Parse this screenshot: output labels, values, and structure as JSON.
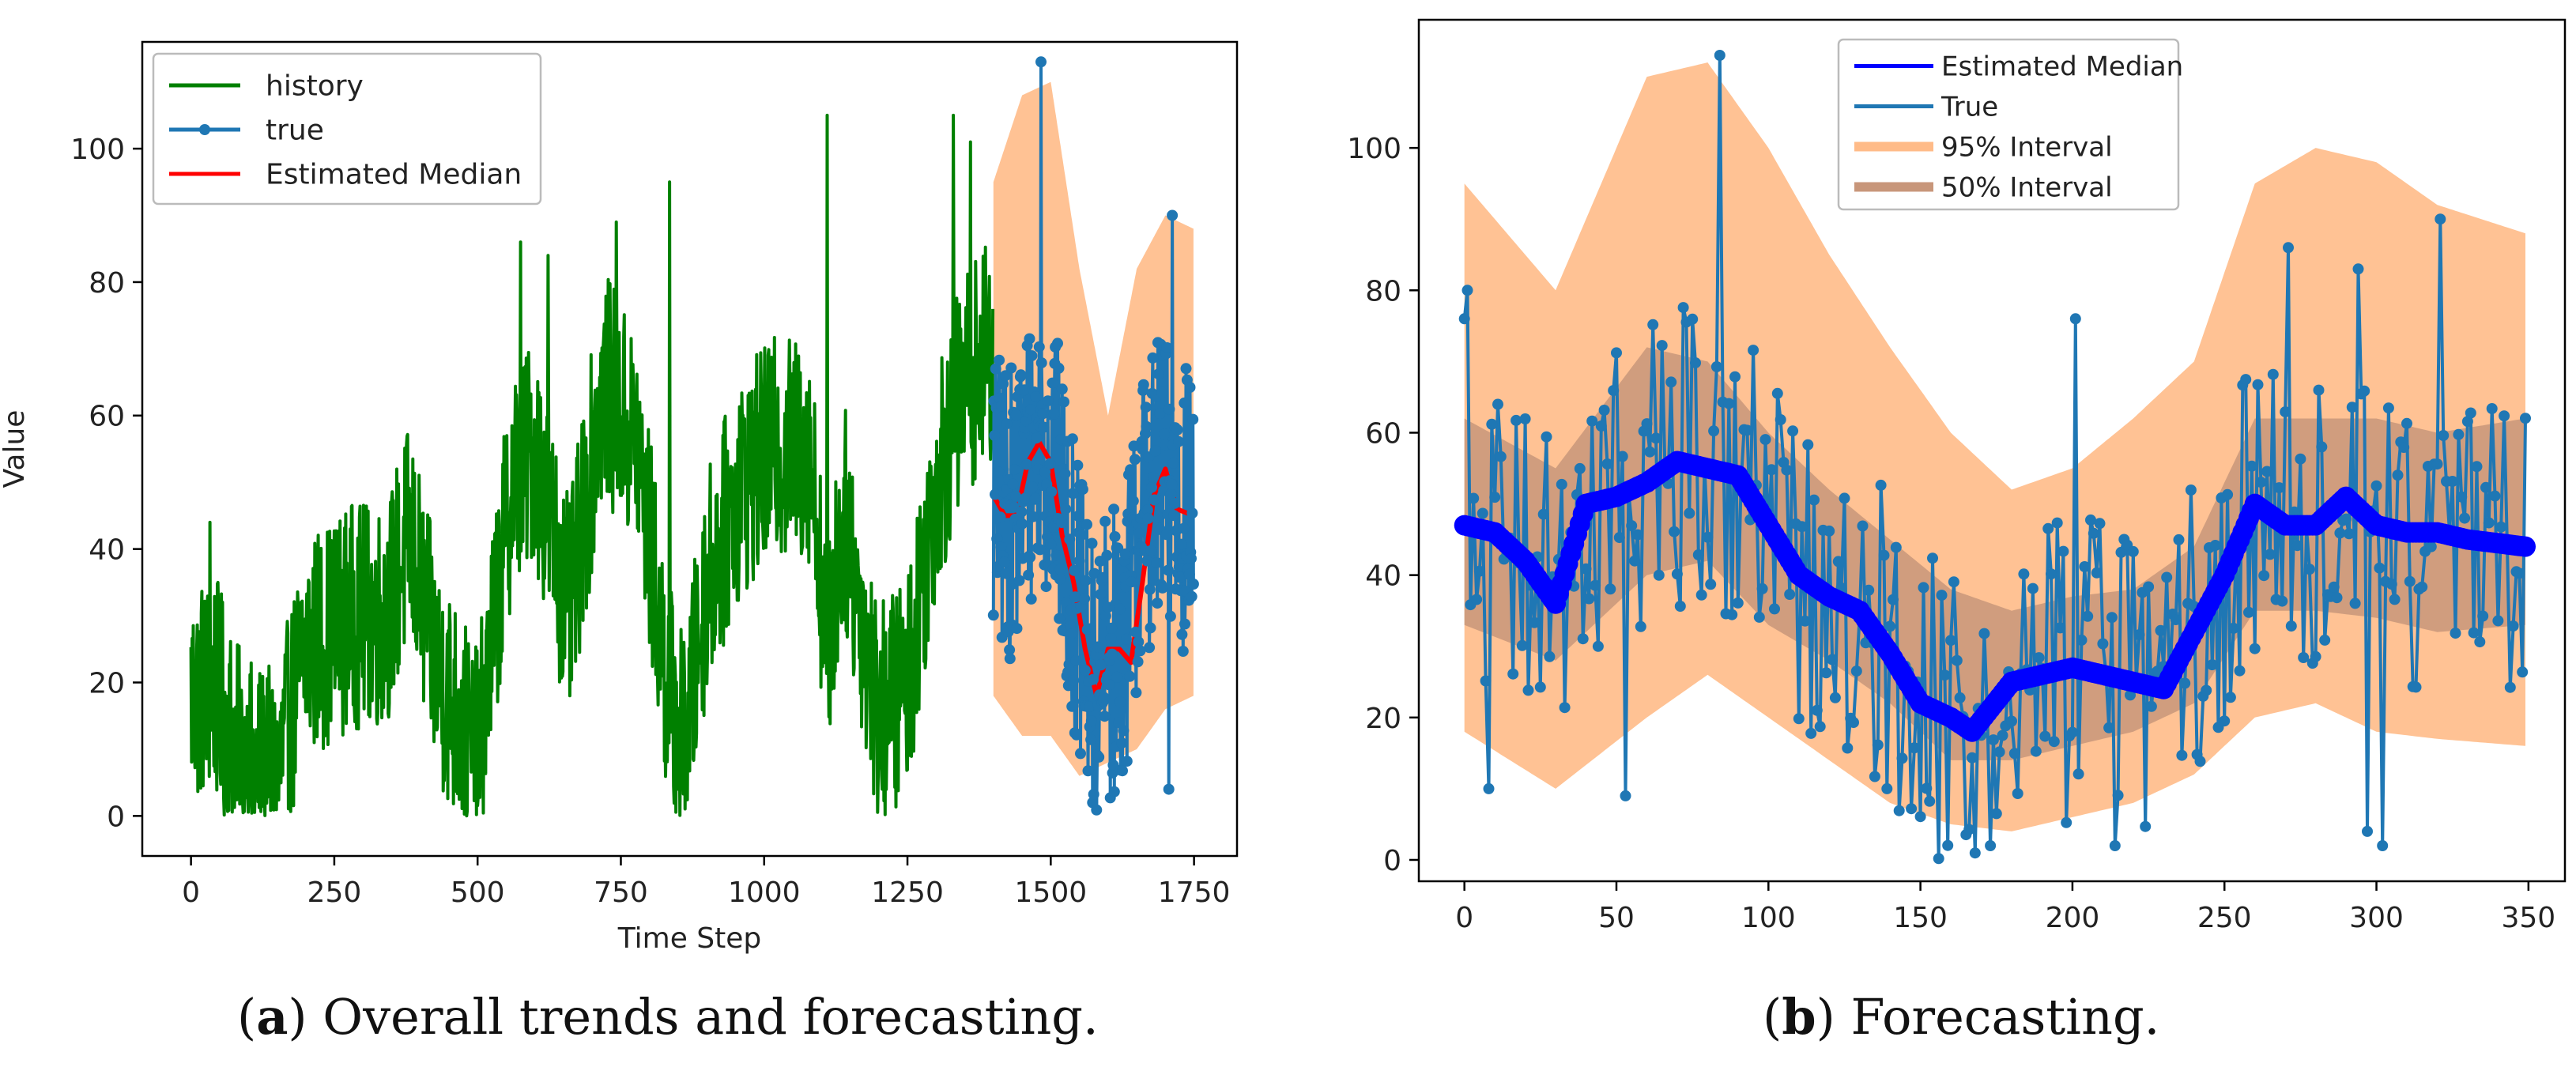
{
  "figure": {
    "caption_a": {
      "tag": "a",
      "text": " Overall trends and forecasting."
    },
    "caption_b": {
      "tag": "b",
      "text": " Forecasting."
    }
  },
  "chart_data": [
    {
      "type": "line",
      "panel": "a",
      "title": "",
      "xlabel": "Time Step",
      "ylabel": "Value",
      "xlim": [
        -85,
        1825
      ],
      "ylim": [
        -6,
        116
      ],
      "xticks": [
        0,
        250,
        500,
        750,
        1000,
        1250,
        1500,
        1750
      ],
      "yticks": [
        0,
        20,
        40,
        60,
        80,
        100
      ],
      "legend": {
        "placement": "top-left",
        "entries": [
          "history",
          "true",
          "Estimated Median"
        ]
      },
      "colors": {
        "history": "#008000",
        "true": "#1f77b4",
        "median": "#ff0000",
        "band95": "#ffbb88"
      },
      "series": [
        {
          "name": "history",
          "style": "line",
          "x_range": [
            0,
            1399
          ],
          "anchors_x": [
            0,
            40,
            90,
            150,
            200,
            280,
            340,
            380,
            430,
            500,
            560,
            600,
            660,
            720,
            780,
            830,
            860,
            900,
            960,
            1020,
            1080,
            1110,
            1140,
            1200,
            1250,
            1300,
            1350,
            1399
          ],
          "anchors_y": [
            18,
            20,
            7,
            5,
            25,
            30,
            30,
            42,
            22,
            8,
            50,
            55,
            30,
            65,
            55,
            20,
            10,
            35,
            50,
            55,
            55,
            25,
            45,
            15,
            20,
            50,
            65,
            70
          ],
          "noise": 17,
          "peaks": [
            [
              33,
              44
            ],
            [
              575,
              86
            ],
            [
              623,
              84
            ],
            [
              742,
              89
            ],
            [
              835,
              95
            ],
            [
              1110,
              105
            ],
            [
              1330,
              105
            ],
            [
              1360,
              101
            ]
          ]
        },
        {
          "name": "true",
          "style": "line-marker",
          "x_range": [
            1400,
            1749
          ],
          "anchors_x": [
            1400,
            1430,
            1450,
            1470,
            1490,
            1510,
            1550,
            1570,
            1600,
            1630,
            1660,
            1690,
            1720,
            1749
          ],
          "anchors_y": [
            48,
            45,
            50,
            55,
            55,
            50,
            30,
            20,
            23,
            28,
            45,
            50,
            47,
            45
          ],
          "noise": 22,
          "peaks": [
            [
              1483,
              113
            ],
            [
              1712,
              90
            ],
            [
              1573,
              2
            ],
            [
              1706,
              4
            ]
          ]
        },
        {
          "name": "Estimated Median",
          "style": "line",
          "x_range": [
            1400,
            1749
          ],
          "anchors_x": [
            1400,
            1420,
            1440,
            1460,
            1480,
            1500,
            1520,
            1540,
            1560,
            1580,
            1600,
            1620,
            1640,
            1660,
            1680,
            1700,
            1720,
            1749
          ],
          "anchors_y": [
            48,
            45,
            45,
            53,
            56,
            53,
            42,
            35,
            25,
            18,
            25,
            25,
            23,
            35,
            48,
            52,
            46,
            45
          ]
        },
        {
          "name": "95% band",
          "style": "band",
          "x_range": [
            1400,
            1749
          ],
          "anchors_x": [
            1400,
            1450,
            1500,
            1550,
            1600,
            1650,
            1700,
            1749
          ],
          "upper": [
            95,
            108,
            110,
            82,
            60,
            82,
            90,
            88
          ],
          "lower": [
            18,
            12,
            12,
            6,
            8,
            10,
            16,
            18
          ]
        }
      ]
    },
    {
      "type": "line",
      "panel": "b",
      "title": "",
      "xlabel": "",
      "ylabel": "",
      "xlim": [
        -15,
        362
      ],
      "ylim": [
        -3,
        118
      ],
      "xticks": [
        0,
        50,
        100,
        150,
        200,
        250,
        300,
        350
      ],
      "yticks": [
        0,
        20,
        40,
        60,
        80,
        100
      ],
      "legend": {
        "placement": "top-center",
        "entries": [
          "Estimated Median",
          "True",
          "95% Interval",
          "50% Interval"
        ]
      },
      "colors": {
        "median": "#0000ff",
        "true": "#1f77b4",
        "band95": "#ffbb88",
        "band50": "#c8967a"
      },
      "series": [
        {
          "name": "Estimated Median",
          "style": "line-marker",
          "x_range": [
            0,
            349
          ],
          "anchors_x": [
            0,
            10,
            20,
            30,
            40,
            50,
            60,
            70,
            80,
            90,
            100,
            110,
            120,
            130,
            140,
            150,
            160,
            167,
            180,
            200,
            210,
            230,
            240,
            250,
            260,
            270,
            280,
            290,
            300,
            310,
            320,
            330,
            349
          ],
          "anchors_y": [
            47,
            46,
            42,
            36,
            50,
            51,
            53,
            56,
            55,
            54,
            47,
            40,
            37,
            35,
            29,
            22,
            20,
            18,
            25,
            27,
            26,
            24,
            32,
            40,
            50,
            47,
            47,
            51,
            47,
            46,
            46,
            45,
            44
          ]
        },
        {
          "name": "True",
          "style": "line-marker",
          "x_range": [
            0,
            349
          ],
          "anchors_x": [
            0,
            10,
            20,
            30,
            40,
            50,
            60,
            70,
            80,
            90,
            100,
            110,
            120,
            130,
            140,
            150,
            160,
            167,
            180,
            200,
            210,
            230,
            240,
            250,
            260,
            270,
            280,
            290,
            300,
            310,
            320,
            330,
            349
          ],
          "anchors_y": [
            47,
            46,
            42,
            36,
            50,
            51,
            53,
            56,
            55,
            54,
            47,
            40,
            37,
            35,
            29,
            22,
            20,
            18,
            25,
            27,
            26,
            24,
            32,
            40,
            50,
            47,
            47,
            51,
            47,
            46,
            46,
            45,
            44
          ],
          "noise": 22,
          "peaks": [
            [
              84,
              113
            ],
            [
              0,
              76
            ],
            [
              1,
              80
            ],
            [
              201,
              76
            ],
            [
              271,
              86
            ],
            [
              321,
              90
            ],
            [
              294,
              83
            ],
            [
              173,
              2
            ],
            [
              214,
              2
            ],
            [
              302,
              2
            ],
            [
              297,
              4
            ],
            [
              8,
              10
            ],
            [
              53,
              9
            ]
          ]
        },
        {
          "name": "95% Interval",
          "style": "band",
          "x_range": [
            0,
            349
          ],
          "anchors_x": [
            0,
            30,
            60,
            80,
            100,
            120,
            140,
            160,
            180,
            200,
            220,
            240,
            260,
            280,
            300,
            320,
            349
          ],
          "upper": [
            95,
            80,
            110,
            112,
            100,
            85,
            72,
            60,
            52,
            55,
            62,
            70,
            95,
            100,
            98,
            92,
            88
          ],
          "lower": [
            18,
            10,
            20,
            26,
            20,
            14,
            8,
            5,
            4,
            6,
            8,
            12,
            20,
            22,
            18,
            17,
            16
          ]
        },
        {
          "name": "50% Interval",
          "style": "band",
          "x_range": [
            0,
            349
          ],
          "anchors_x": [
            0,
            30,
            60,
            80,
            100,
            120,
            140,
            160,
            180,
            200,
            220,
            240,
            260,
            280,
            300,
            320,
            349
          ],
          "upper": [
            62,
            55,
            72,
            70,
            60,
            52,
            45,
            38,
            35,
            37,
            38,
            44,
            62,
            62,
            62,
            60,
            62
          ],
          "lower": [
            33,
            28,
            40,
            42,
            33,
            28,
            22,
            14,
            14,
            16,
            18,
            22,
            35,
            35,
            34,
            32,
            33
          ]
        }
      ]
    }
  ]
}
